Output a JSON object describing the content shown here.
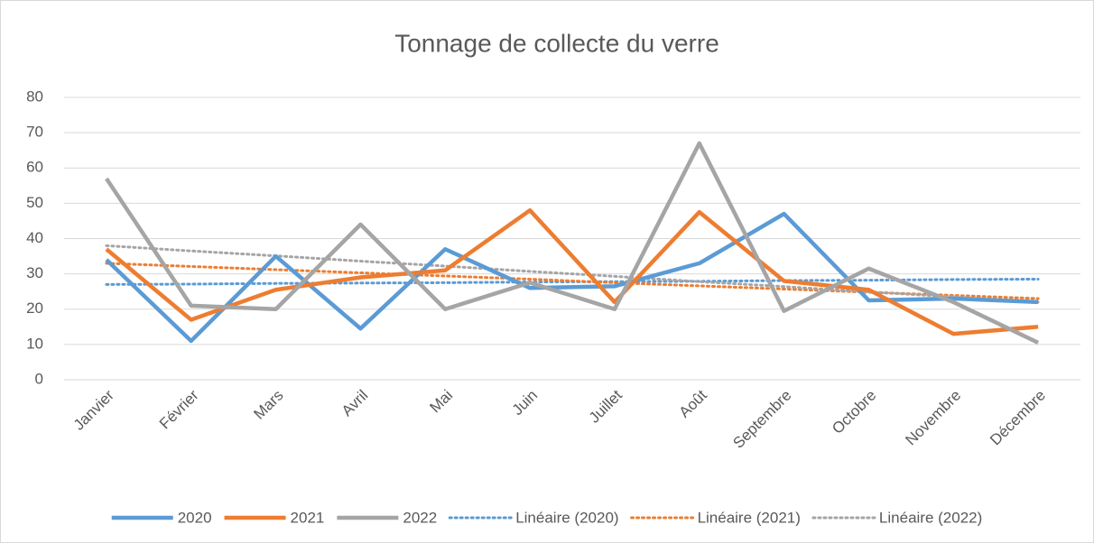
{
  "chart_data": {
    "type": "line",
    "title": "Tonnage de collecte du verre",
    "categories": [
      "Janvier",
      "Février",
      "Mars",
      "Avril",
      "Mai",
      "Juin",
      "Juillet",
      "Août",
      "Septembre",
      "Octobre",
      "Novembre",
      "Décembre"
    ],
    "series": [
      {
        "name": "2020",
        "color": "#5b9bd5",
        "style": "solid",
        "values": [
          34,
          11,
          35,
          14.5,
          37,
          26,
          26.5,
          33,
          47,
          22.5,
          23,
          22
        ]
      },
      {
        "name": "2021",
        "color": "#ed7d31",
        "style": "solid",
        "values": [
          37,
          17,
          25.5,
          29,
          31,
          48,
          22,
          47.5,
          28,
          25.5,
          13,
          15
        ]
      },
      {
        "name": "2022",
        "color": "#a5a5a5",
        "style": "solid",
        "values": [
          57,
          21,
          20,
          44,
          20,
          27.5,
          20,
          67,
          19.5,
          31.5,
          22,
          10.5
        ]
      },
      {
        "name": "Linéaire (2020)",
        "color": "#5b9bd5",
        "style": "dotted",
        "values": [
          27,
          27.1,
          27.3,
          27.4,
          27.5,
          27.7,
          27.8,
          27.9,
          28.1,
          28.2,
          28.4,
          28.5
        ]
      },
      {
        "name": "Linéaire (2021)",
        "color": "#ed7d31",
        "style": "dotted",
        "values": [
          33,
          32.1,
          31.2,
          30.3,
          29.4,
          28.5,
          27.5,
          26.6,
          25.7,
          24.8,
          23.9,
          23
        ]
      },
      {
        "name": "Linéaire (2022)",
        "color": "#a5a5a5",
        "style": "dotted",
        "values": [
          38,
          36.5,
          35.1,
          33.6,
          32.2,
          30.7,
          29.3,
          27.8,
          26.4,
          24.9,
          23.5,
          22
        ]
      }
    ],
    "ylim": [
      0,
      80
    ],
    "yticks": [
      0,
      10,
      20,
      30,
      40,
      50,
      60,
      70,
      80
    ],
    "grid": true,
    "legend": "bottom"
  }
}
